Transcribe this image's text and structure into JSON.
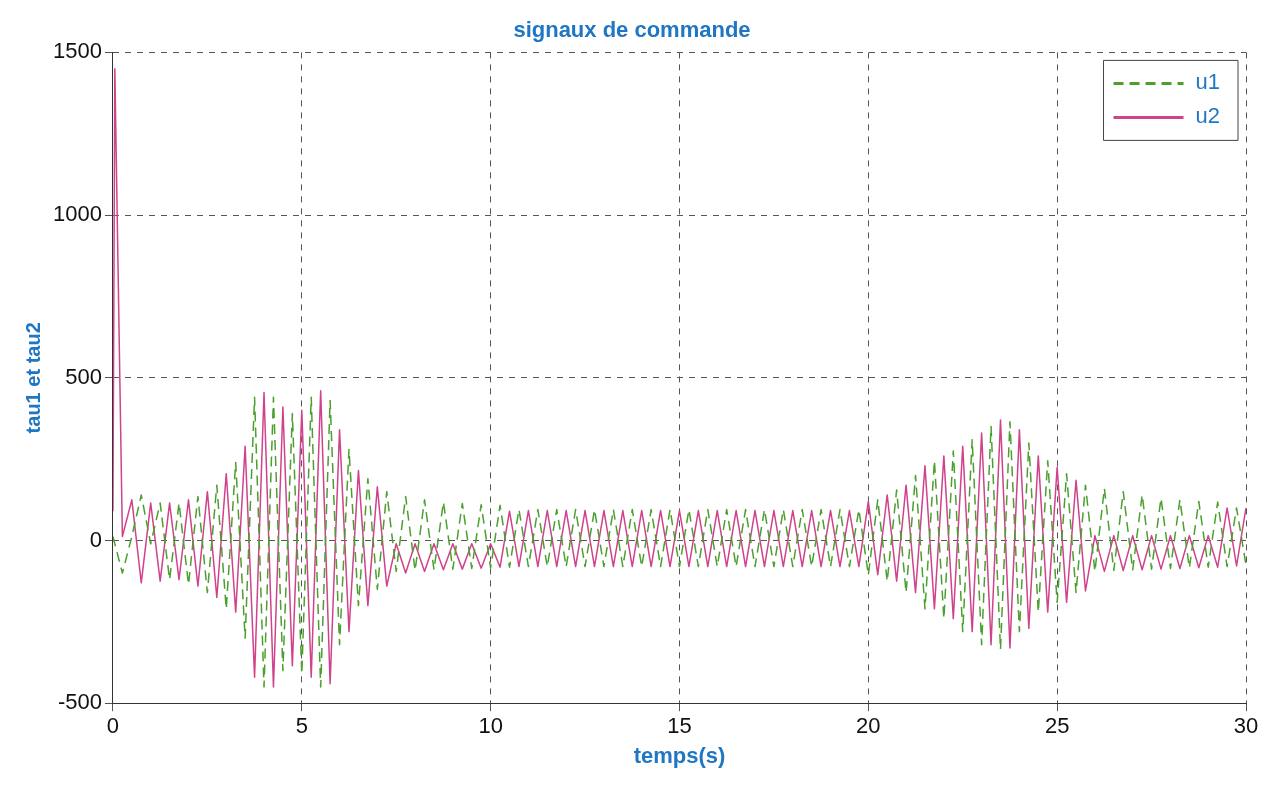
{
  "chart_data": {
    "type": "line",
    "title": "signaux de commande",
    "xlabel": "temps(s)",
    "ylabel": "tau1 et tau2",
    "x": [
      0,
      0.25,
      0.5,
      0.75,
      1,
      1.25,
      1.5,
      1.75,
      2,
      2.25,
      2.5,
      2.75,
      3,
      3.25,
      3.5,
      3.75,
      4,
      4.25,
      4.5,
      4.75,
      5,
      5.25,
      5.5,
      5.75,
      6,
      6.25,
      6.5,
      6.75,
      7,
      7.25,
      7.5,
      7.75,
      8,
      8.25,
      8.5,
      8.75,
      9,
      9.25,
      9.5,
      9.75,
      10,
      10.25,
      10.5,
      10.75,
      11,
      11.25,
      11.5,
      11.75,
      12,
      12.25,
      12.5,
      12.75,
      13,
      13.25,
      13.5,
      13.75,
      14,
      14.25,
      14.5,
      14.75,
      15,
      15.25,
      15.5,
      15.75,
      16,
      16.25,
      16.5,
      16.75,
      17,
      17.25,
      17.5,
      17.75,
      18,
      18.25,
      18.5,
      18.75,
      19,
      19.25,
      19.5,
      19.75,
      20,
      20.25,
      20.5,
      20.75,
      21,
      21.25,
      21.5,
      21.75,
      22,
      22.25,
      22.5,
      22.75,
      23,
      23.25,
      23.5,
      23.75,
      24,
      24.25,
      24.5,
      24.75,
      25,
      25.25,
      25.5,
      25.75,
      26,
      26.25,
      26.5,
      26.75,
      27,
      27.25,
      27.5,
      27.75,
      28,
      28.25,
      28.5,
      28.75,
      29,
      29.25,
      29.5,
      29.75,
      30
    ],
    "series": [
      {
        "name": "u1",
        "color": "#4aa02c",
        "line_style": "dashed",
        "values": [
          12,
          -100,
          12,
          140,
          -10,
          115,
          -120,
          115,
          -135,
          135,
          -160,
          170,
          -210,
          240,
          -300,
          440,
          -450,
          440,
          -400,
          390,
          -410,
          440,
          -450,
          430,
          -320,
          280,
          -200,
          190,
          -150,
          150,
          -95,
          135,
          -92,
          125,
          -90,
          118,
          -88,
          114,
          -86,
          110,
          -84,
          108,
          -82,
          95,
          -80,
          95,
          -80,
          95,
          -80,
          95,
          -80,
          95,
          -80,
          95,
          -80,
          95,
          -80,
          95,
          -80,
          95,
          -80,
          95,
          -80,
          95,
          -80,
          95,
          -80,
          95,
          -80,
          95,
          -80,
          95,
          -80,
          95,
          -80,
          95,
          -80,
          95,
          -80,
          95,
          -105,
          125,
          -125,
          155,
          -160,
          200,
          -210,
          245,
          -240,
          275,
          -280,
          310,
          -320,
          350,
          -335,
          365,
          -280,
          300,
          -220,
          245,
          -190,
          205,
          -160,
          170,
          -95,
          160,
          -92,
          150,
          -90,
          140,
          -88,
          130,
          -86,
          125,
          -84,
          120,
          -82,
          118,
          -80,
          100,
          -75
        ]
      },
      {
        "name": "u2",
        "color": "#d0428a",
        "line_style": "solid",
        "x": [
          0,
          0.05,
          0.25,
          0.5,
          0.75,
          1,
          1.25,
          1.5,
          1.75,
          2,
          2.25,
          2.5,
          2.75,
          3,
          3.25,
          3.5,
          3.75,
          4,
          4.25,
          4.5,
          4.75,
          5,
          5.25,
          5.5,
          5.75,
          6,
          6.25,
          6.5,
          6.75,
          7,
          7.25,
          7.5,
          7.75,
          8,
          8.25,
          8.5,
          8.75,
          9,
          9.25,
          9.5,
          9.75,
          10,
          10.25,
          10.5,
          10.75,
          11,
          11.25,
          11.5,
          11.75,
          12,
          12.25,
          12.5,
          12.75,
          13,
          13.25,
          13.5,
          13.75,
          14,
          14.25,
          14.5,
          14.75,
          15,
          15.25,
          15.5,
          15.75,
          16,
          16.25,
          16.5,
          16.75,
          17,
          17.25,
          17.5,
          17.75,
          18,
          18.25,
          18.5,
          18.75,
          19,
          19.25,
          19.5,
          19.75,
          20,
          20.25,
          20.5,
          20.75,
          21,
          21.25,
          21.5,
          21.75,
          22,
          22.25,
          22.5,
          22.75,
          23,
          23.25,
          23.5,
          23.75,
          24,
          24.25,
          24.5,
          24.75,
          25,
          25.25,
          25.5,
          25.75,
          26,
          26.25,
          26.5,
          26.75,
          27,
          27.25,
          27.5,
          27.75,
          28,
          28.25,
          28.5,
          28.75,
          29,
          29.25,
          29.5,
          29.75,
          30
        ],
        "values": [
          90,
          1450,
          12,
          125,
          -130,
          115,
          -125,
          115,
          -120,
          125,
          -140,
          150,
          -175,
          205,
          -220,
          290,
          -420,
          455,
          -450,
          410,
          -385,
          400,
          -420,
          460,
          -440,
          340,
          -280,
          215,
          -200,
          165,
          -140,
          -10,
          -100,
          -10,
          -95,
          -10,
          -90,
          -10,
          -88,
          -10,
          -85,
          -10,
          -82,
          90,
          -80,
          92,
          -80,
          92,
          -80,
          92,
          -80,
          92,
          -80,
          92,
          -80,
          92,
          -80,
          92,
          -80,
          92,
          -80,
          92,
          -80,
          92,
          -80,
          92,
          -80,
          92,
          -80,
          92,
          -80,
          92,
          -80,
          92,
          -80,
          92,
          -80,
          92,
          -80,
          92,
          -80,
          120,
          -105,
          140,
          -125,
          170,
          -160,
          230,
          -210,
          260,
          -240,
          290,
          -280,
          330,
          -320,
          370,
          -330,
          340,
          -270,
          260,
          -220,
          225,
          -190,
          185,
          -155,
          15,
          -95,
          15,
          -92,
          15,
          -90,
          15,
          -88,
          15,
          -86,
          15,
          -84,
          15,
          -82,
          100,
          -78,
          100
        ]
      }
    ],
    "xlim": [
      0,
      30
    ],
    "xticks": [
      0,
      5,
      10,
      15,
      20,
      25,
      30
    ],
    "ylim": [
      -500,
      1500
    ],
    "yticks": [
      -500,
      0,
      500,
      1000,
      1500
    ],
    "grid": true,
    "legend": "top right",
    "marker": "none"
  }
}
